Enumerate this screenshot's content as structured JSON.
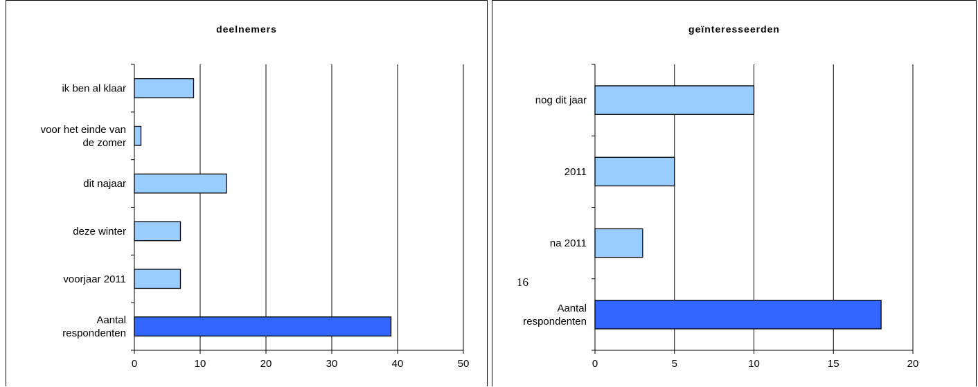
{
  "colors": {
    "bar_light": "#99ccff",
    "bar_dark": "#3366ff",
    "stroke": "#000000"
  },
  "chart_data": [
    {
      "type": "bar",
      "orientation": "horizontal",
      "title": "deelnemers",
      "categories": [
        "ik ben al klaar",
        "voor het einde van de zomer",
        "dit najaar",
        "deze winter",
        "voorjaar 2011",
        "Aantal respondenten"
      ],
      "category_lines": [
        [
          "ik ben al klaar"
        ],
        [
          "voor het einde van",
          "de zomer"
        ],
        [
          "dit najaar"
        ],
        [
          "deze winter"
        ],
        [
          "voorjaar 2011"
        ],
        [
          "Aantal",
          "respondenten"
        ]
      ],
      "values": [
        9,
        1,
        14,
        7,
        7,
        39
      ],
      "highlight": [
        false,
        false,
        false,
        false,
        false,
        true
      ],
      "xlim": [
        0,
        50
      ],
      "xticks": [
        0,
        10,
        20,
        30,
        40,
        50
      ],
      "grid": true
    },
    {
      "type": "bar",
      "orientation": "horizontal",
      "title": "geïnteresseerden",
      "categories": [
        "nog dit jaar",
        "2011",
        "na 2011",
        "Aantal respondenten"
      ],
      "category_lines": [
        [
          "nog dit jaar"
        ],
        [
          "2011"
        ],
        [
          "na 2011"
        ],
        [
          "Aantal",
          "respondenten"
        ]
      ],
      "values": [
        10,
        5,
        3,
        18
      ],
      "highlight": [
        false,
        false,
        false,
        true
      ],
      "xlim": [
        0,
        20
      ],
      "xticks": [
        0,
        5,
        10,
        15,
        20
      ],
      "grid": true,
      "annotation": "16"
    }
  ]
}
